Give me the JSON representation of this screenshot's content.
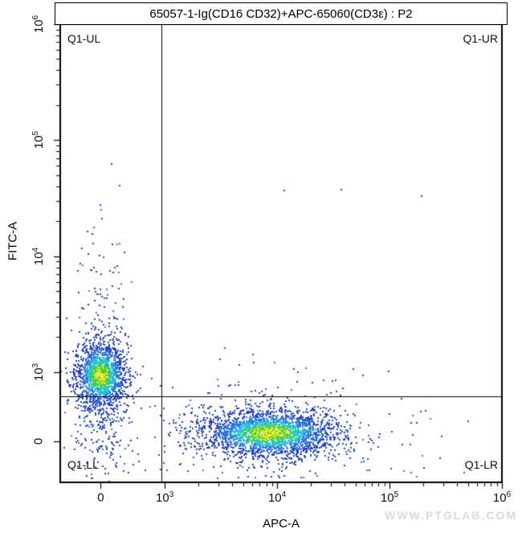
{
  "watermark": "WWW.PTGLAB.COM",
  "chart_data": {
    "type": "scatter",
    "subtype": "flow-cytometry-density-dot-plot",
    "title": "65057-1-Ig(CD16 CD32)+APC-65060(CD3ε) : P2",
    "xlabel": "APC-A",
    "ylabel": "FITC-A",
    "x_scale": "biexponential-log",
    "y_scale": "biexponential-log",
    "x_range": [
      -650,
      1000000
    ],
    "y_range": [
      -700,
      1000000
    ],
    "grid": false,
    "x_ticks": [
      {
        "label": "0",
        "value": 0
      },
      {
        "label": "10³",
        "base": "10",
        "exp": "3",
        "value": 1000
      },
      {
        "label": "10⁴",
        "base": "10",
        "exp": "4",
        "value": 10000
      },
      {
        "label": "10⁵",
        "base": "10",
        "exp": "5",
        "value": 100000
      },
      {
        "label": "10⁶",
        "base": "10",
        "exp": "6",
        "value": 1000000
      }
    ],
    "y_ticks": [
      {
        "label": "0",
        "value": 0
      },
      {
        "label": "10³",
        "base": "10",
        "exp": "3",
        "value": 1000
      },
      {
        "label": "10⁴",
        "base": "10",
        "exp": "4",
        "value": 10000
      },
      {
        "label": "10⁵",
        "base": "10",
        "exp": "5",
        "value": 100000
      },
      {
        "label": "10⁶",
        "base": "10",
        "exp": "6",
        "value": 1000000
      }
    ],
    "quadrants": {
      "labels": {
        "ul": "Q1-UL",
        "ur": "Q1-UR",
        "ll": "Q1-LL",
        "lr": "Q1-LR"
      },
      "gate_x": 950,
      "gate_y": 650
    },
    "density_palette": {
      "far": "#2342c6",
      "outer": "#2e73df",
      "mid": "#25c2e4",
      "inner": "#46d32c",
      "core": "#f2e72e"
    },
    "point_size": 2,
    "populations": [
      {
        "name": "background-scatter",
        "type": "uniform",
        "x_min": -450,
        "x_max": 500000,
        "y_min": -450,
        "y_max": 550,
        "count": 70
      },
      {
        "name": "sparse-upper-right",
        "type": "uniform",
        "x_min": 1200,
        "x_max": 250000,
        "y_min": 700,
        "y_max": 60000,
        "count": 4
      },
      {
        "name": "fitc-high-outliers",
        "type": "uniform",
        "x_min": -200,
        "x_max": 500,
        "y_min": 40000,
        "y_max": 350000,
        "count": 2
      },
      {
        "name": "fitc-pop-lower-halo",
        "type": "gauss",
        "cx": 0,
        "cy": 350,
        "sx_dec": 0.15,
        "sy_dec": 0.33,
        "count": 220,
        "density": false
      },
      {
        "name": "fitc-pop-upper-tail",
        "type": "gauss",
        "cx": 0,
        "cy": 1900,
        "sx_dec": 0.13,
        "sy_dec": 0.5,
        "count": 170,
        "density": false
      },
      {
        "name": "apc-pop-halo",
        "type": "gauss",
        "cx": 8500,
        "cy": 120,
        "sx_dec": 0.5,
        "sy_dec": 0.28,
        "count": 280,
        "density": false
      },
      {
        "name": "fitc-positive-population (CD16/CD32-FITC+)",
        "type": "gauss",
        "cx": 0,
        "cy": 950,
        "sx_dec": 0.115,
        "sy_dec": 0.15,
        "count": 1500,
        "density": true
      },
      {
        "name": "apc-positive-population (CD3ε-APC+)",
        "type": "gauss",
        "cx": 8500,
        "cy": 120,
        "sx_dec": 0.3,
        "sy_dec": 0.1,
        "count": 2400,
        "density": true
      }
    ]
  }
}
